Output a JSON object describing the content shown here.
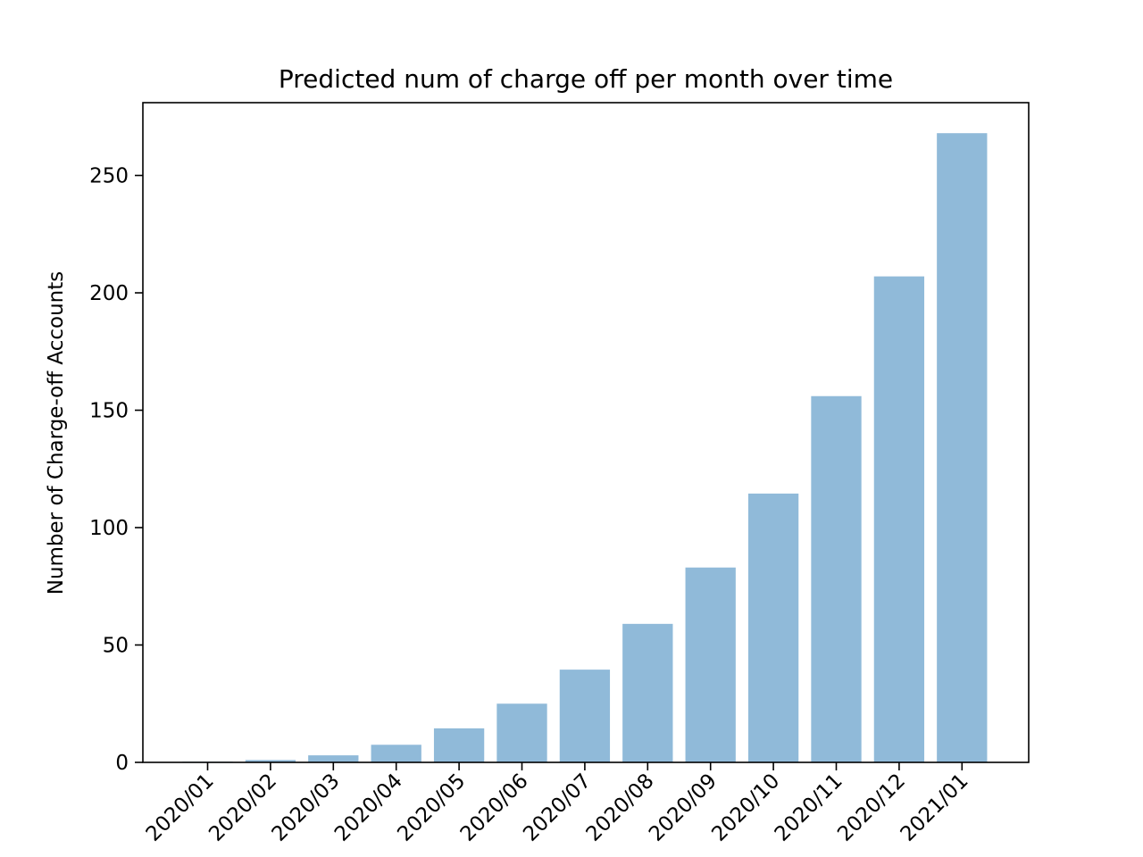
{
  "chart_data": {
    "type": "bar",
    "title": "Predicted num of charge off per month over time",
    "xlabel": "",
    "ylabel": "Number of Charge-off Accounts",
    "categories": [
      "2020/01",
      "2020/02",
      "2020/03",
      "2020/04",
      "2020/05",
      "2020/06",
      "2020/07",
      "2020/08",
      "2020/09",
      "2020/10",
      "2020/11",
      "2020/12",
      "2021/01"
    ],
    "values": [
      0.3,
      1,
      3,
      7.5,
      14.5,
      25,
      39.5,
      59,
      83,
      114.5,
      156,
      207,
      268
    ],
    "ylim": [
      0,
      281
    ],
    "yticks": [
      0,
      50,
      100,
      150,
      200,
      250
    ],
    "bar_color": "#90bad9",
    "grid": false,
    "legend": "none"
  }
}
